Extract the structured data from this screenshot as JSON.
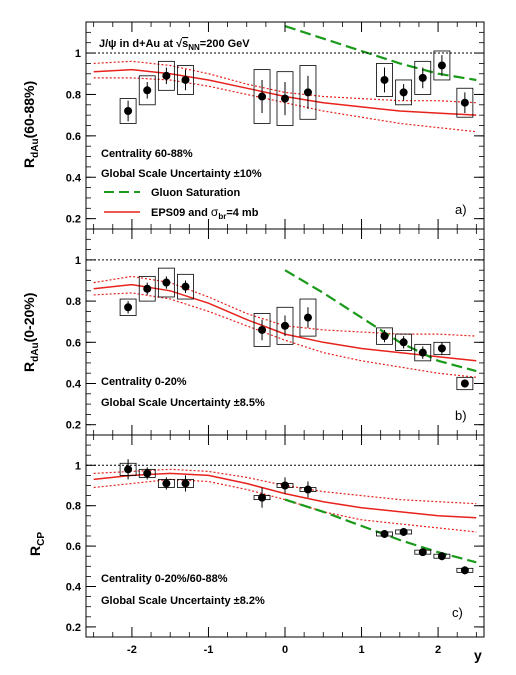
{
  "chart_data": [
    {
      "type": "scatter",
      "panel_tag": "a)",
      "ylabel": "R_dAu(60-88%)",
      "ylabel_parts": [
        "R",
        "dAu",
        "(60-88%)"
      ],
      "xlim": [
        -2.6,
        2.6
      ],
      "ylim": [
        0.15,
        1.15
      ],
      "yticks": [
        0.2,
        0.4,
        0.6,
        0.8,
        1
      ],
      "ytick_labels": [
        "0.2",
        "0.4",
        "0.6",
        "0.8",
        "1"
      ],
      "reference_line": 1,
      "annotations": {
        "header": "J/ψ in d+Au at √ s_NN=200 GeV",
        "header_parts": [
          "J/ψ in d+Au at ",
          "√",
          "s",
          "NN",
          "=200 GeV"
        ],
        "centrality": "Centrality 60-88%",
        "global": "Global Scale Uncertainty ±10%"
      },
      "legend": [
        {
          "label": "Gluon Saturation",
          "style": "dashed",
          "color": "#1a9a1a"
        },
        {
          "label": "EPS09 and σ_br=4 mb",
          "label_parts": [
            "EPS09 and ",
            "σ",
            "br",
            "=4 mb"
          ],
          "style": "solid",
          "color": "#e8221c"
        }
      ],
      "points": [
        {
          "x": -2.05,
          "y": 0.72,
          "stat": 0.05,
          "sys": 0.06
        },
        {
          "x": -1.8,
          "y": 0.82,
          "stat": 0.04,
          "sys": 0.07
        },
        {
          "x": -1.55,
          "y": 0.89,
          "stat": 0.04,
          "sys": 0.07
        },
        {
          "x": -1.3,
          "y": 0.87,
          "stat": 0.05,
          "sys": 0.07
        },
        {
          "x": -0.3,
          "y": 0.79,
          "stat": 0.08,
          "sys": 0.13
        },
        {
          "x": 0.0,
          "y": 0.78,
          "stat": 0.08,
          "sys": 0.13
        },
        {
          "x": 0.3,
          "y": 0.81,
          "stat": 0.08,
          "sys": 0.13
        },
        {
          "x": 1.3,
          "y": 0.87,
          "stat": 0.06,
          "sys": 0.08
        },
        {
          "x": 1.55,
          "y": 0.81,
          "stat": 0.04,
          "sys": 0.06
        },
        {
          "x": 1.8,
          "y": 0.88,
          "stat": 0.05,
          "sys": 0.08
        },
        {
          "x": 2.05,
          "y": 0.94,
          "stat": 0.05,
          "sys": 0.07
        },
        {
          "x": 2.35,
          "y": 0.76,
          "stat": 0.05,
          "sys": 0.07
        }
      ],
      "curves": {
        "gluon_saturation": {
          "x": [
            0.0,
            0.5,
            1.0,
            1.5,
            2.0,
            2.5
          ],
          "y": [
            1.13,
            1.07,
            1.01,
            0.95,
            0.9,
            0.87
          ]
        },
        "eps09": {
          "x": [
            -2.5,
            -2.0,
            -1.5,
            -1.0,
            -0.5,
            0.0,
            0.5,
            1.0,
            1.5,
            2.0,
            2.5
          ],
          "y": [
            0.91,
            0.92,
            0.9,
            0.87,
            0.83,
            0.79,
            0.76,
            0.74,
            0.72,
            0.71,
            0.7
          ]
        },
        "eps09_upper": {
          "x": [
            -2.5,
            -2.0,
            -1.5,
            -1.0,
            -0.5,
            0.0,
            0.5,
            1.0,
            1.5,
            2.0,
            2.5
          ],
          "y": [
            0.95,
            0.96,
            0.94,
            0.9,
            0.85,
            0.81,
            0.79,
            0.78,
            0.77,
            0.77,
            0.76
          ]
        },
        "eps09_lower": {
          "x": [
            -2.5,
            -2.0,
            -1.5,
            -1.0,
            -0.5,
            0.0,
            0.5,
            1.0,
            1.5,
            2.0,
            2.5
          ],
          "y": [
            0.88,
            0.88,
            0.87,
            0.84,
            0.8,
            0.76,
            0.72,
            0.69,
            0.66,
            0.64,
            0.62
          ]
        }
      }
    },
    {
      "type": "scatter",
      "panel_tag": "b)",
      "ylabel": "R_dAu(0-20%)",
      "ylabel_parts": [
        "R",
        "dAu",
        "(0-20%)"
      ],
      "xlim": [
        -2.6,
        2.6
      ],
      "ylim": [
        0.15,
        1.15
      ],
      "yticks": [
        0.2,
        0.4,
        0.6,
        0.8,
        1
      ],
      "ytick_labels": [
        "0.2",
        "0.4",
        "0.6",
        "0.8",
        "1"
      ],
      "reference_line": 1,
      "annotations": {
        "centrality": "Centrality 0-20%",
        "global": "Global Scale Uncertainty ±8.5%"
      },
      "points": [
        {
          "x": -2.05,
          "y": 0.77,
          "stat": 0.03,
          "sys": 0.04
        },
        {
          "x": -1.8,
          "y": 0.86,
          "stat": 0.03,
          "sys": 0.06
        },
        {
          "x": -1.55,
          "y": 0.89,
          "stat": 0.03,
          "sys": 0.07
        },
        {
          "x": -1.3,
          "y": 0.87,
          "stat": 0.03,
          "sys": 0.06
        },
        {
          "x": -0.3,
          "y": 0.66,
          "stat": 0.05,
          "sys": 0.08
        },
        {
          "x": 0.0,
          "y": 0.68,
          "stat": 0.05,
          "sys": 0.09
        },
        {
          "x": 0.3,
          "y": 0.72,
          "stat": 0.05,
          "sys": 0.09
        },
        {
          "x": 1.3,
          "y": 0.63,
          "stat": 0.03,
          "sys": 0.04
        },
        {
          "x": 1.55,
          "y": 0.6,
          "stat": 0.03,
          "sys": 0.04
        },
        {
          "x": 1.8,
          "y": 0.55,
          "stat": 0.03,
          "sys": 0.04
        },
        {
          "x": 2.05,
          "y": 0.57,
          "stat": 0.03,
          "sys": 0.03
        },
        {
          "x": 2.35,
          "y": 0.4,
          "stat": 0.02,
          "sys": 0.03
        }
      ],
      "curves": {
        "gluon_saturation": {
          "x": [
            0.0,
            0.5,
            1.0,
            1.5,
            2.0,
            2.5
          ],
          "y": [
            0.95,
            0.84,
            0.72,
            0.6,
            0.51,
            0.46
          ]
        },
        "eps09": {
          "x": [
            -2.5,
            -2.0,
            -1.5,
            -1.0,
            -0.5,
            0.0,
            0.5,
            1.0,
            1.5,
            2.0,
            2.5
          ],
          "y": [
            0.86,
            0.88,
            0.85,
            0.79,
            0.71,
            0.64,
            0.6,
            0.57,
            0.55,
            0.53,
            0.51
          ]
        },
        "eps09_upper": {
          "x": [
            -2.5,
            -2.0,
            -1.5,
            -1.0,
            -0.5,
            0.0,
            0.5,
            1.0,
            1.5,
            2.0,
            2.5
          ],
          "y": [
            0.89,
            0.92,
            0.89,
            0.82,
            0.74,
            0.68,
            0.66,
            0.65,
            0.64,
            0.64,
            0.63
          ]
        },
        "eps09_lower": {
          "x": [
            -2.5,
            -2.0,
            -1.5,
            -1.0,
            -0.5,
            0.0,
            0.5,
            1.0,
            1.5,
            2.0,
            2.5
          ],
          "y": [
            0.83,
            0.84,
            0.81,
            0.75,
            0.68,
            0.61,
            0.55,
            0.51,
            0.48,
            0.45,
            0.43
          ]
        }
      }
    },
    {
      "type": "scatter",
      "panel_tag": "c)",
      "ylabel": "R_CP",
      "ylabel_parts": [
        "R",
        "CP",
        ""
      ],
      "xlabel": "y",
      "xlim": [
        -2.6,
        2.6
      ],
      "ylim": [
        0.15,
        1.15
      ],
      "yticks": [
        0.2,
        0.4,
        0.6,
        0.8,
        1
      ],
      "ytick_labels": [
        "0.2",
        "0.4",
        "0.6",
        "0.8",
        "1"
      ],
      "xticks": [
        -2,
        -1,
        0,
        1,
        2
      ],
      "xtick_labels": [
        "-2",
        "-1",
        "0",
        "1",
        "2"
      ],
      "reference_line": 1,
      "annotations": {
        "centrality": "Centrality 0-20%/60-88%",
        "global": "Global Scale Uncertainty ±8.2%"
      },
      "points": [
        {
          "x": -2.05,
          "y": 0.98,
          "stat": 0.05,
          "sys": 0.03
        },
        {
          "x": -1.8,
          "y": 0.96,
          "stat": 0.03,
          "sys": 0.02
        },
        {
          "x": -1.55,
          "y": 0.91,
          "stat": 0.03,
          "sys": 0.02
        },
        {
          "x": -1.3,
          "y": 0.91,
          "stat": 0.04,
          "sys": 0.02
        },
        {
          "x": -0.3,
          "y": 0.84,
          "stat": 0.05,
          "sys": 0.01
        },
        {
          "x": 0.0,
          "y": 0.9,
          "stat": 0.04,
          "sys": 0.01
        },
        {
          "x": 0.3,
          "y": 0.88,
          "stat": 0.04,
          "sys": 0.01
        },
        {
          "x": 1.3,
          "y": 0.66,
          "stat": 0.02,
          "sys": 0.01
        },
        {
          "x": 1.55,
          "y": 0.67,
          "stat": 0.02,
          "sys": 0.01
        },
        {
          "x": 1.8,
          "y": 0.57,
          "stat": 0.01,
          "sys": 0.01
        },
        {
          "x": 2.05,
          "y": 0.55,
          "stat": 0.02,
          "sys": 0.01
        },
        {
          "x": 2.35,
          "y": 0.48,
          "stat": 0.02,
          "sys": 0.01
        }
      ],
      "curves": {
        "gluon_saturation": {
          "x": [
            0.0,
            0.5,
            1.0,
            1.5,
            2.0,
            2.5
          ],
          "y": [
            0.83,
            0.77,
            0.7,
            0.63,
            0.57,
            0.52
          ]
        },
        "eps09": {
          "x": [
            -2.5,
            -2.0,
            -1.5,
            -1.0,
            -0.5,
            0.0,
            0.5,
            1.0,
            1.5,
            2.0,
            2.5
          ],
          "y": [
            0.93,
            0.95,
            0.96,
            0.95,
            0.91,
            0.86,
            0.82,
            0.79,
            0.77,
            0.75,
            0.74
          ]
        },
        "eps09_upper": {
          "x": [
            -2.5,
            -2.0,
            -1.5,
            -1.0,
            -0.5,
            0.0,
            0.5,
            1.0,
            1.5,
            2.0,
            2.5
          ],
          "y": [
            0.96,
            0.97,
            0.98,
            0.97,
            0.94,
            0.9,
            0.87,
            0.85,
            0.83,
            0.82,
            0.81
          ]
        },
        "eps09_lower": {
          "x": [
            -2.5,
            -2.0,
            -1.5,
            -1.0,
            -0.5,
            0.0,
            0.5,
            1.0,
            1.5,
            2.0,
            2.5
          ],
          "y": [
            0.89,
            0.91,
            0.93,
            0.92,
            0.88,
            0.83,
            0.77,
            0.73,
            0.71,
            0.69,
            0.67
          ]
        }
      }
    }
  ],
  "colors": {
    "eps09": "#e8221c",
    "gluon_saturation": "#1a9a1a",
    "points": "#000000",
    "axes": "#000000"
  }
}
